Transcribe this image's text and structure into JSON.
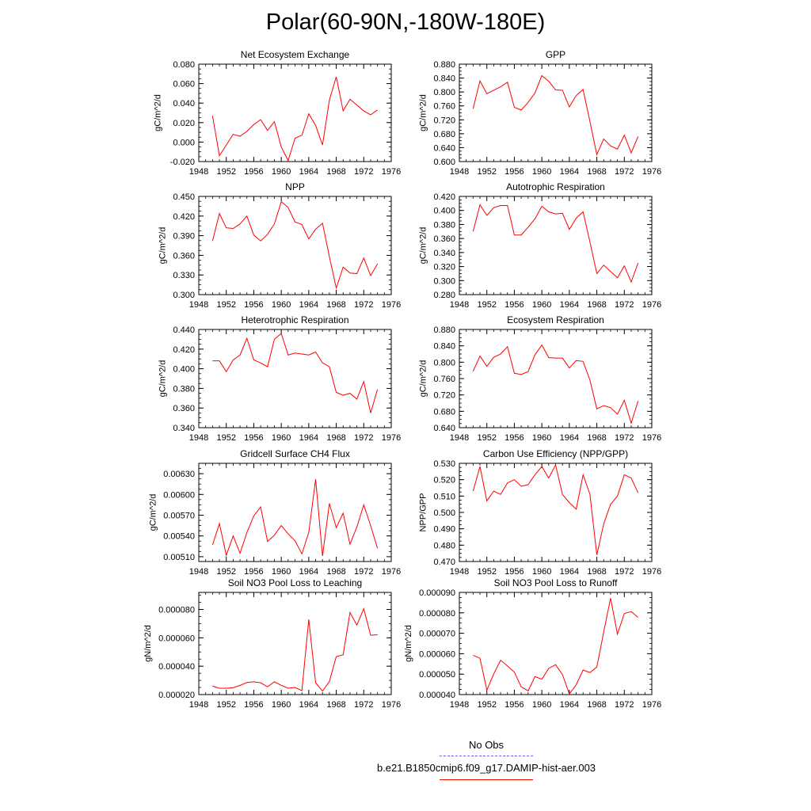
{
  "page_title": "Polar(60-90N,-180W-180E)",
  "legend": {
    "obs_label": "No Obs",
    "obs_color": "#6666ff",
    "model_label": "b.e21.B1850cmip6.f09_g17.DAMIP-hist-aer.003",
    "model_color": "#ff0000"
  },
  "chart_data": [
    {
      "type": "line",
      "title": "Net Ecosystem Exchange",
      "ylabel": "gC/m^2/d",
      "xlim": [
        1948,
        1976
      ],
      "xticks": [
        "1948",
        "1952",
        "1956",
        "1960",
        "1964",
        "1968",
        "1972",
        "1976"
      ],
      "ylim": [
        -0.02,
        0.08
      ],
      "yticks": [
        "-0.020",
        "0.000",
        "0.020",
        "0.040",
        "0.060",
        "0.080"
      ],
      "series": [
        {
          "color": "#ff0000",
          "x": [
            1950,
            1951,
            1952,
            1953,
            1954,
            1955,
            1956,
            1957,
            1958,
            1959,
            1960,
            1961,
            1962,
            1963,
            1964,
            1965,
            1966,
            1967,
            1968,
            1969,
            1970,
            1971,
            1972,
            1973,
            1974
          ],
          "y": [
            0.027,
            -0.014,
            -0.003,
            0.008,
            0.006,
            0.011,
            0.018,
            0.023,
            0.012,
            0.021,
            -0.005,
            -0.019,
            0.004,
            0.007,
            0.029,
            0.017,
            -0.003,
            0.043,
            0.067,
            0.032,
            0.044,
            0.038,
            0.032,
            0.028,
            0.033
          ]
        }
      ]
    },
    {
      "type": "line",
      "title": "GPP",
      "ylabel": "gC/m^2/d",
      "xlim": [
        1948,
        1976
      ],
      "xticks": [
        "1948",
        "1952",
        "1956",
        "1960",
        "1964",
        "1968",
        "1972",
        "1976"
      ],
      "ylim": [
        0.6,
        0.88
      ],
      "yticks": [
        "0.600",
        "0.640",
        "0.680",
        "0.720",
        "0.760",
        "0.800",
        "0.840",
        "0.880"
      ],
      "series": [
        {
          "color": "#ff0000",
          "x": [
            1950,
            1951,
            1952,
            1953,
            1954,
            1955,
            1956,
            1957,
            1958,
            1959,
            1960,
            1961,
            1962,
            1963,
            1964,
            1965,
            1966,
            1967,
            1968,
            1969,
            1970,
            1971,
            1972,
            1973,
            1974
          ],
          "y": [
            0.752,
            0.832,
            0.795,
            0.805,
            0.815,
            0.828,
            0.756,
            0.748,
            0.77,
            0.797,
            0.847,
            0.831,
            0.806,
            0.805,
            0.757,
            0.79,
            0.807,
            0.715,
            0.62,
            0.665,
            0.645,
            0.636,
            0.676,
            0.625,
            0.672
          ]
        }
      ]
    },
    {
      "type": "line",
      "title": "NPP",
      "ylabel": "gC/m^2/d",
      "xlim": [
        1948,
        1976
      ],
      "xticks": [
        "1948",
        "1952",
        "1956",
        "1960",
        "1964",
        "1968",
        "1972",
        "1976"
      ],
      "ylim": [
        0.3,
        0.45
      ],
      "yticks": [
        "0.300",
        "0.330",
        "0.360",
        "0.390",
        "0.420",
        "0.450"
      ],
      "series": [
        {
          "color": "#ff0000",
          "x": [
            1950,
            1951,
            1952,
            1953,
            1954,
            1955,
            1956,
            1957,
            1958,
            1959,
            1960,
            1961,
            1962,
            1963,
            1964,
            1965,
            1966,
            1967,
            1968,
            1969,
            1970,
            1971,
            1972,
            1973,
            1974
          ],
          "y": [
            0.382,
            0.424,
            0.402,
            0.401,
            0.408,
            0.42,
            0.391,
            0.382,
            0.392,
            0.408,
            0.442,
            0.433,
            0.411,
            0.407,
            0.385,
            0.4,
            0.409,
            0.358,
            0.31,
            0.342,
            0.333,
            0.332,
            0.356,
            0.329,
            0.347
          ]
        }
      ]
    },
    {
      "type": "line",
      "title": "Autotrophic Respiration",
      "ylabel": "gC/m^2/d",
      "xlim": [
        1948,
        1976
      ],
      "xticks": [
        "1948",
        "1952",
        "1956",
        "1960",
        "1964",
        "1968",
        "1972",
        "1976"
      ],
      "ylim": [
        0.28,
        0.42
      ],
      "yticks": [
        "0.280",
        "0.300",
        "0.320",
        "0.340",
        "0.360",
        "0.380",
        "0.400",
        "0.420"
      ],
      "series": [
        {
          "color": "#ff0000",
          "x": [
            1950,
            1951,
            1952,
            1953,
            1954,
            1955,
            1956,
            1957,
            1958,
            1959,
            1960,
            1961,
            1962,
            1963,
            1964,
            1965,
            1966,
            1967,
            1968,
            1969,
            1970,
            1971,
            1972,
            1973,
            1974
          ],
          "y": [
            0.37,
            0.408,
            0.393,
            0.404,
            0.407,
            0.407,
            0.365,
            0.365,
            0.376,
            0.388,
            0.406,
            0.398,
            0.395,
            0.396,
            0.373,
            0.389,
            0.398,
            0.355,
            0.31,
            0.322,
            0.313,
            0.304,
            0.321,
            0.298,
            0.325
          ]
        }
      ]
    },
    {
      "type": "line",
      "title": "Heterotrophic Respiration",
      "ylabel": "gC/m^2/d",
      "xlim": [
        1948,
        1976
      ],
      "xticks": [
        "1948",
        "1952",
        "1956",
        "1960",
        "1964",
        "1968",
        "1972",
        "1976"
      ],
      "ylim": [
        0.34,
        0.44
      ],
      "yticks": [
        "0.340",
        "0.360",
        "0.380",
        "0.400",
        "0.420",
        "0.440"
      ],
      "series": [
        {
          "color": "#ff0000",
          "x": [
            1950,
            1951,
            1952,
            1953,
            1954,
            1955,
            1956,
            1957,
            1958,
            1959,
            1960,
            1961,
            1962,
            1963,
            1964,
            1965,
            1966,
            1967,
            1968,
            1969,
            1970,
            1971,
            1972,
            1973,
            1974
          ],
          "y": [
            0.408,
            0.408,
            0.397,
            0.409,
            0.414,
            0.431,
            0.409,
            0.406,
            0.402,
            0.43,
            0.436,
            0.414,
            0.416,
            0.415,
            0.414,
            0.417,
            0.406,
            0.402,
            0.376,
            0.373,
            0.375,
            0.369,
            0.387,
            0.355,
            0.379
          ]
        }
      ]
    },
    {
      "type": "line",
      "title": "Ecosystem Respiration",
      "ylabel": "gC/m^2/d",
      "xlim": [
        1948,
        1976
      ],
      "xticks": [
        "1948",
        "1952",
        "1956",
        "1960",
        "1964",
        "1968",
        "1972",
        "1976"
      ],
      "ylim": [
        0.64,
        0.88
      ],
      "yticks": [
        "0.640",
        "0.680",
        "0.720",
        "0.760",
        "0.800",
        "0.840",
        "0.880"
      ],
      "series": [
        {
          "color": "#ff0000",
          "x": [
            1950,
            1951,
            1952,
            1953,
            1954,
            1955,
            1956,
            1957,
            1958,
            1959,
            1960,
            1961,
            1962,
            1963,
            1964,
            1965,
            1966,
            1967,
            1968,
            1969,
            1970,
            1971,
            1972,
            1973,
            1974
          ],
          "y": [
            0.778,
            0.815,
            0.79,
            0.812,
            0.82,
            0.838,
            0.773,
            0.77,
            0.777,
            0.818,
            0.842,
            0.811,
            0.81,
            0.81,
            0.786,
            0.804,
            0.802,
            0.756,
            0.686,
            0.694,
            0.689,
            0.673,
            0.707,
            0.651,
            0.705
          ]
        }
      ]
    },
    {
      "type": "line",
      "title": "Gridcell Surface CH4 Flux",
      "ylabel": "gC/m^2/d",
      "xlim": [
        1948,
        1976
      ],
      "xticks": [
        "1948",
        "1952",
        "1956",
        "1960",
        "1964",
        "1968",
        "1972",
        "1976"
      ],
      "ylim": [
        0.00503,
        0.00645
      ],
      "yticks": [
        "0.00510",
        "0.00540",
        "0.00570",
        "0.00600",
        "0.00630"
      ],
      "series": [
        {
          "color": "#ff0000",
          "x": [
            1950,
            1951,
            1952,
            1953,
            1954,
            1955,
            1956,
            1957,
            1958,
            1959,
            1960,
            1961,
            1962,
            1963,
            1964,
            1965,
            1966,
            1967,
            1968,
            1969,
            1970,
            1971,
            1972,
            1973,
            1974
          ],
          "y": [
            0.00527,
            0.00558,
            0.00512,
            0.0054,
            0.00515,
            0.00545,
            0.00569,
            0.00582,
            0.00532,
            0.00541,
            0.00555,
            0.00543,
            0.00533,
            0.00514,
            0.00545,
            0.00622,
            0.00511,
            0.00587,
            0.00552,
            0.00573,
            0.00528,
            0.00553,
            0.00585,
            0.00555,
            0.00522
          ]
        }
      ]
    },
    {
      "type": "line",
      "title": "Carbon Use Efficiency (NPP/GPP)",
      "ylabel": "NPP/GPP",
      "xlim": [
        1948,
        1976
      ],
      "xticks": [
        "1948",
        "1952",
        "1956",
        "1960",
        "1964",
        "1968",
        "1972",
        "1976"
      ],
      "ylim": [
        0.47,
        0.53
      ],
      "yticks": [
        "0.470",
        "0.480",
        "0.490",
        "0.500",
        "0.510",
        "0.520",
        "0.530"
      ],
      "series": [
        {
          "color": "#ff0000",
          "x": [
            1950,
            1951,
            1952,
            1953,
            1954,
            1955,
            1956,
            1957,
            1958,
            1959,
            1960,
            1961,
            1962,
            1963,
            1964,
            1965,
            1966,
            1967,
            1968,
            1969,
            1970,
            1971,
            1972,
            1973,
            1974
          ],
          "y": [
            0.513,
            0.528,
            0.507,
            0.513,
            0.511,
            0.518,
            0.52,
            0.516,
            0.517,
            0.523,
            0.528,
            0.521,
            0.529,
            0.511,
            0.506,
            0.502,
            0.523,
            0.511,
            0.474,
            0.493,
            0.505,
            0.51,
            0.523,
            0.521,
            0.512
          ]
        }
      ]
    },
    {
      "type": "line",
      "title": "Soil NO3 Pool Loss to Leaching",
      "ylabel": "gN/m^2/d",
      "xlim": [
        1948,
        1976
      ],
      "xticks": [
        "1948",
        "1952",
        "1956",
        "1960",
        "1964",
        "1968",
        "1972",
        "1976"
      ],
      "ylim": [
        2e-05,
        9.2e-05
      ],
      "yticks": [
        "0.000020",
        "0.000040",
        "0.000060",
        "0.000080"
      ],
      "series": [
        {
          "color": "#ff0000",
          "x": [
            1950,
            1951,
            1952,
            1953,
            1954,
            1955,
            1956,
            1957,
            1958,
            1959,
            1960,
            1961,
            1962,
            1963,
            1964,
            1965,
            1966,
            1967,
            1968,
            1969,
            1970,
            1971,
            1972,
            1973,
            1974
          ],
          "y": [
            2.6e-05,
            2.45e-05,
            2.45e-05,
            2.48e-05,
            2.65e-05,
            2.85e-05,
            2.9e-05,
            2.83e-05,
            2.55e-05,
            2.9e-05,
            2.65e-05,
            2.45e-05,
            2.5e-05,
            2.28e-05,
            7.3e-05,
            2.83e-05,
            2.25e-05,
            2.92e-05,
            4.68e-05,
            4.8e-05,
            7.78e-05,
            6.9e-05,
            8.05e-05,
            6.18e-05,
            6.22e-05
          ]
        }
      ]
    },
    {
      "type": "line",
      "title": "Soil NO3 Pool Loss to Runoff",
      "ylabel": "gN/m^2/d",
      "xlim": [
        1948,
        1976
      ],
      "xticks": [
        "1948",
        "1952",
        "1956",
        "1960",
        "1964",
        "1968",
        "1972",
        "1976"
      ],
      "ylim": [
        4e-05,
        9e-05
      ],
      "yticks": [
        "0.000040",
        "0.000050",
        "0.000060",
        "0.000070",
        "0.000080",
        "0.000090"
      ],
      "series": [
        {
          "color": "#ff0000",
          "x": [
            1950,
            1951,
            1952,
            1953,
            1954,
            1955,
            1956,
            1957,
            1958,
            1959,
            1960,
            1961,
            1962,
            1963,
            1964,
            1965,
            1966,
            1967,
            1968,
            1969,
            1970,
            1971,
            1972,
            1973,
            1974
          ],
          "y": [
            5.92e-05,
            5.78e-05,
            4.22e-05,
            5.01e-05,
            5.68e-05,
            5.4e-05,
            5.1e-05,
            4.38e-05,
            4.18e-05,
            4.88e-05,
            4.75e-05,
            5.28e-05,
            5.46e-05,
            4.98e-05,
            4.03e-05,
            4.48e-05,
            5.2e-05,
            5.08e-05,
            5.35e-05,
            7.06e-05,
            8.72e-05,
            6.96e-05,
            7.97e-05,
            8.06e-05,
            7.78e-05
          ]
        }
      ]
    }
  ]
}
